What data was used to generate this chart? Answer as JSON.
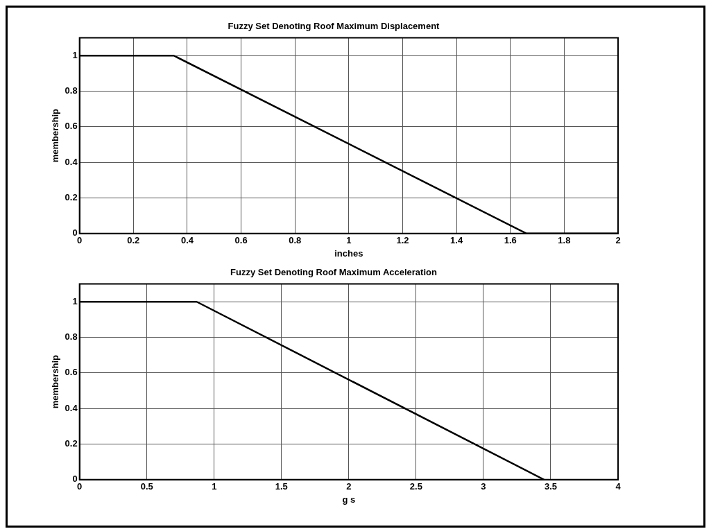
{
  "chart_data": [
    {
      "type": "line",
      "title": "Fuzzy Set Denoting Roof Maximum Displacement",
      "xlabel": "inches",
      "ylabel": "membership",
      "x": [
        0,
        0.35,
        1.66,
        2
      ],
      "values": [
        1,
        1,
        0,
        0
      ],
      "color": "#000000",
      "xlim": [
        0,
        2
      ],
      "ylim": [
        0,
        1.1
      ],
      "xticks": [
        0,
        0.2,
        0.4,
        0.6,
        0.8,
        1,
        1.2,
        1.4,
        1.6,
        1.8,
        2
      ],
      "yticks": [
        0,
        0.2,
        0.4,
        0.6,
        0.8,
        1
      ],
      "grid": true,
      "line_style": "solid",
      "marker": "none"
    },
    {
      "type": "line",
      "title": "Fuzzy Set Denoting Roof Maximum Acceleration",
      "xlabel": "g s",
      "ylabel": "membership",
      "x": [
        0,
        0.87,
        3.45
      ],
      "values": [
        1,
        1,
        0
      ],
      "color": "#000000",
      "xlim": [
        0,
        4
      ],
      "ylim": [
        0,
        1.1
      ],
      "xticks": [
        0,
        0.5,
        1,
        1.5,
        2,
        2.5,
        3,
        3.5,
        4
      ],
      "yticks": [
        0,
        0.2,
        0.4,
        0.6,
        0.8,
        1
      ],
      "grid": true,
      "line_style": "solid",
      "marker": "none"
    }
  ]
}
